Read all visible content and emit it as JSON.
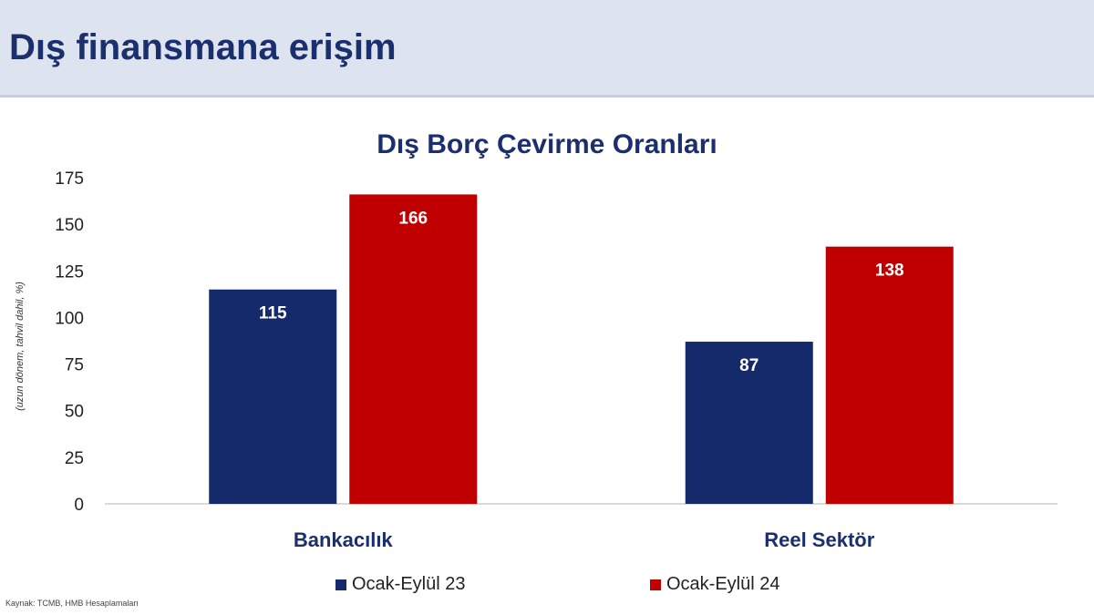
{
  "header": {
    "title": "Dış finansmana erişim"
  },
  "source": "Kaynak: TCMB, HMB Hesaplamaları",
  "chart_data": {
    "type": "bar",
    "title": "Dış Borç Çevirme Oranları",
    "ylabel": "(uzun dönem, tahvil dahil, %)",
    "xlabel": "",
    "categories": [
      "Bankacılık",
      "Reel Sektör"
    ],
    "series": [
      {
        "name": "Ocak-Eylül 23",
        "values": [
          115,
          87
        ],
        "color": "#142a6b"
      },
      {
        "name": "Ocak-Eylül 24",
        "values": [
          166,
          138
        ],
        "color": "#c00000"
      }
    ],
    "ylim": [
      0,
      175
    ],
    "yticks": [
      0,
      25,
      50,
      75,
      100,
      125,
      150,
      175
    ],
    "grid": false,
    "legend_position": "bottom",
    "data_labels": true
  }
}
